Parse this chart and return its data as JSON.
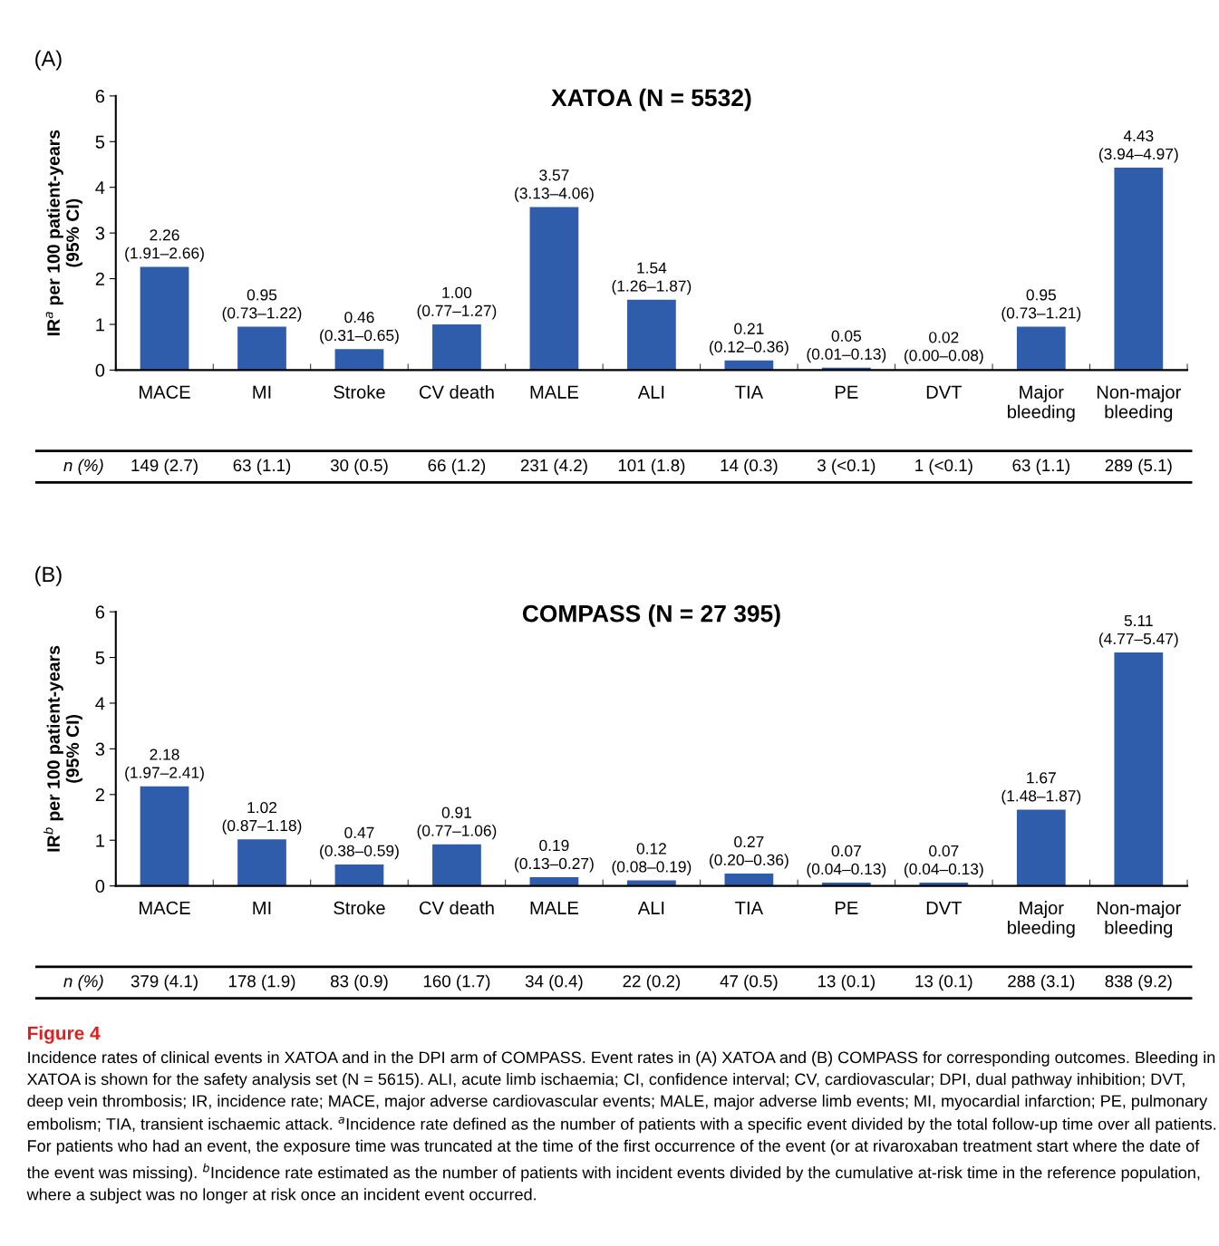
{
  "chart_data": [
    {
      "type": "bar",
      "title": "XATOA (N = 5532)",
      "ylabel": "IR$^{a}$ per 100 patient-years\n(95% CI)",
      "categories": [
        "MACE",
        "MI",
        "Stroke",
        "CV death",
        "MALE",
        "ALI",
        "TIA",
        "PE",
        "DVT",
        "Major\nbleeding",
        "Non-major\nbleeding"
      ],
      "values": [
        2.26,
        0.95,
        0.46,
        1.0,
        3.57,
        1.54,
        0.21,
        0.05,
        0.02,
        0.95,
        4.43
      ],
      "value_labels": [
        "2.26\n(1.91–2.66)",
        "0.95\n(0.73–1.22)",
        "0.46\n(0.31–0.65)",
        "1.00\n(0.77–1.27)",
        "3.57\n(3.13–4.06)",
        "1.54\n(1.26–1.87)",
        "0.21\n(0.12–0.36)",
        "0.05\n(0.01–0.13)",
        "0.02\n(0.00–0.08)",
        "0.95\n(0.73–1.21)",
        "4.43\n(3.94–4.97)"
      ],
      "color": "#2f5dab",
      "ylim": [
        0,
        6
      ],
      "yticks": [
        0,
        1,
        2,
        3,
        4,
        5,
        6
      ],
      "grid": false,
      "legend": false,
      "annotations": [
        "(A)",
        "n (%)",
        "149 (2.7)",
        "63 (1.1)",
        "30 (0.5)",
        "66 (1.2)",
        "231 (4.2)",
        "101 (1.8)",
        "14 (0.3)",
        "3 (<0.1)",
        "1 (<0.1)",
        "63 (1.1)",
        "289 (5.1)"
      ]
    },
    {
      "type": "bar",
      "title": "COMPASS (N = 27 395)",
      "ylabel": "IR$^{b}$ per 100 patient-years\n(95% CI)",
      "categories": [
        "MACE",
        "MI",
        "Stroke",
        "CV death",
        "MALE",
        "ALI",
        "TIA",
        "PE",
        "DVT",
        "Major\nbleeding",
        "Non-major\nbleeding"
      ],
      "values": [
        2.18,
        1.02,
        0.47,
        0.91,
        0.19,
        0.12,
        0.27,
        0.07,
        0.07,
        1.67,
        5.11
      ],
      "value_labels": [
        "2.18\n(1.97–2.41)",
        "1.02\n(0.87–1.18)",
        "0.47\n(0.38–0.59)",
        "0.91\n(0.77–1.06)",
        "0.19\n(0.13–0.27)",
        "0.12\n(0.08–0.19)",
        "0.27\n(0.20–0.36)",
        "0.07\n(0.04–0.13)",
        "0.07\n(0.04–0.13)",
        "1.67\n(1.48–1.87)",
        "5.11\n(4.77–5.47)"
      ],
      "color": "#2f5dab",
      "ylim": [
        0,
        6
      ],
      "yticks": [
        0,
        1,
        2,
        3,
        4,
        5,
        6
      ],
      "grid": false,
      "legend": false,
      "annotations": [
        "(B)",
        "n (%)",
        "379 (4.1)",
        "178 (1.9)",
        "83 (0.9)",
        "160 (1.7)",
        "34 (0.4)",
        "22 (0.2)",
        "47 (0.5)",
        "13 (0.1)",
        "13 (0.1)",
        "288 (3.1)",
        "838 (9.2)",
        "Figure 4",
        "Incidence rates of clinical events in XATOA and in the DPI arm of COMPASS. Event rates in (A) XATOA and (B) COMPASS for corresponding outcomes. Bleeding in XATOA is shown for the safety analysis set (N = 5615). ALI, acute limb ischaemia; CI, confidence interval; CV, cardiovascular; DPI, dual pathway inhibition; DVT, deep vein thrombosis; IR, incidence rate; MACE, major adverse cardiovascular events; MALE, major adverse limb events; MI, myocardial infarction; PE, pulmonary embolism; TIA, transient ischaemic attack. $^{a}$Incidence rate defined as the number of patients with a specific event divided by the total follow-up time over all patients. For patients who had an event, the exposure time was truncated at the time of the first occurrence of the event (or at rivaroxaban treatment start where the date of the event was missing). $^{b}$Incidence rate estimated as the number of patients with incident events divided by the cumulative at-risk time in the reference population, where a subject was no longer at risk once an incident event occurred."
      ]
    }
  ]
}
